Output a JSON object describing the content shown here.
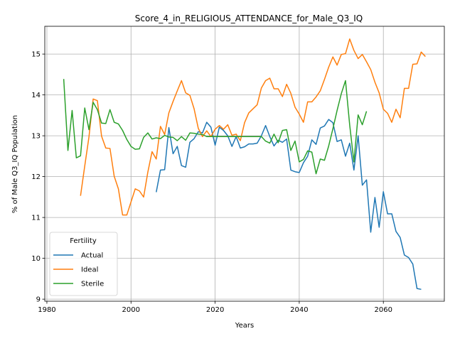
{
  "chart_data": {
    "type": "line",
    "title": "Score_4_in_RELIGIOUS_ATTENDANCE_for_Male_Q3_IQ",
    "xlabel": "Years",
    "ylabel": "% of Male Q3_IQ Population",
    "xlim": [
      1979.5,
      2074.5
    ],
    "ylim": [
      8.95,
      15.68
    ],
    "xticks": [
      1980,
      2000,
      2020,
      2040,
      2060
    ],
    "yticks": [
      9,
      10,
      11,
      12,
      13,
      14,
      15
    ],
    "grid": true,
    "legend": {
      "title": "Fertility",
      "position": "bottom-left"
    },
    "series": [
      {
        "name": "Actual",
        "color": "#1f77b4",
        "x": [
          2006,
          2007,
          2008,
          2009,
          2010,
          2011,
          2012,
          2013,
          2014,
          2015,
          2016,
          2017,
          2018,
          2019,
          2020,
          2021,
          2022,
          2023,
          2024,
          2025,
          2026,
          2027,
          2028,
          2029,
          2030,
          2031,
          2032,
          2033,
          2034,
          2035,
          2036,
          2037,
          2038,
          2039,
          2040,
          2041,
          2042,
          2043,
          2044,
          2045,
          2046,
          2047,
          2048,
          2049,
          2050,
          2051,
          2052,
          2053,
          2054,
          2055,
          2056,
          2057,
          2058,
          2059,
          2060,
          2061,
          2062,
          2063,
          2064,
          2065,
          2066,
          2067,
          2068,
          2069,
          2070
        ],
        "y": [
          11.62,
          12.16,
          12.17,
          13.2,
          12.56,
          12.74,
          12.27,
          12.23,
          12.84,
          12.93,
          13.1,
          13.07,
          13.33,
          13.21,
          12.77,
          13.21,
          13.13,
          13.0,
          12.74,
          12.98,
          12.7,
          12.73,
          12.8,
          12.8,
          12.82,
          13.0,
          13.25,
          12.98,
          12.75,
          12.89,
          12.84,
          12.92,
          12.16,
          12.12,
          12.1,
          12.34,
          12.5,
          12.9,
          12.79,
          13.19,
          13.24,
          13.4,
          13.32,
          12.86,
          12.9,
          12.5,
          12.82,
          12.16,
          13.0,
          11.79,
          11.92,
          10.64,
          11.49,
          10.76,
          11.63,
          11.09,
          11.09,
          10.66,
          10.51,
          10.08,
          10.02,
          9.86,
          9.26,
          9.24,
          null
        ]
      },
      {
        "name": "Ideal",
        "color": "#ff7f0e",
        "x": [
          1988,
          1989,
          1990,
          1991,
          1992,
          1993,
          1994,
          1995,
          1996,
          1997,
          1998,
          1999,
          2000,
          2001,
          2002,
          2003,
          2004,
          2005,
          2006,
          2007,
          2008,
          2009,
          2010,
          2011,
          2012,
          2013,
          2014,
          2015,
          2016,
          2017,
          2018,
          2019,
          2020,
          2021,
          2022,
          2023,
          2024,
          2025,
          2026,
          2027,
          2028,
          2029,
          2030,
          2031,
          2032,
          2033,
          2034,
          2035,
          2036,
          2037,
          2038,
          2039,
          2040,
          2041,
          2042,
          2043,
          2044,
          2045,
          2046,
          2047,
          2048,
          2049,
          2050,
          2051,
          2052,
          2053,
          2054,
          2055,
          2056,
          2057,
          2058,
          2059,
          2060,
          2061,
          2062,
          2063,
          2064,
          2065,
          2066,
          2067,
          2068,
          2069,
          2070
        ],
        "y": [
          11.53,
          12.26,
          12.97,
          13.9,
          13.86,
          12.99,
          12.7,
          12.69,
          12.01,
          11.7,
          11.06,
          11.06,
          11.38,
          11.7,
          11.65,
          11.5,
          12.11,
          12.61,
          12.43,
          13.23,
          13.03,
          13.56,
          13.84,
          14.1,
          14.35,
          14.05,
          13.99,
          13.66,
          13.18,
          12.98,
          13.12,
          12.98,
          13.16,
          13.25,
          13.16,
          13.27,
          13.01,
          13.04,
          12.88,
          13.32,
          13.56,
          13.66,
          13.76,
          14.17,
          14.35,
          14.41,
          14.15,
          14.15,
          13.96,
          14.26,
          14.04,
          13.7,
          13.53,
          13.33,
          13.83,
          13.83,
          13.95,
          14.1,
          14.38,
          14.68,
          14.93,
          14.73,
          14.99,
          15.01,
          15.37,
          15.09,
          14.89,
          14.99,
          14.81,
          14.62,
          14.31,
          14.05,
          13.65,
          13.55,
          13.33,
          13.65,
          13.44,
          14.16,
          14.16,
          14.75,
          14.76,
          15.05,
          14.94
        ]
      },
      {
        "name": "Sterile",
        "color": "#2ca02c",
        "x": [
          1984,
          1985,
          1986,
          1987,
          1988,
          1989,
          1990,
          1991,
          1992,
          1993,
          1994,
          1995,
          1996,
          1997,
          1998,
          1999,
          2000,
          2001,
          2002,
          2003,
          2004,
          2005,
          2006,
          2007,
          2008,
          2009,
          2010,
          2011,
          2012,
          2013,
          2014,
          2015,
          2016,
          2017,
          2018,
          2019,
          2020,
          2021,
          2022,
          2023,
          2024,
          2025,
          2026,
          2027,
          2028,
          2029,
          2030,
          2031,
          2032,
          2033,
          2034,
          2035,
          2036,
          2037,
          2038,
          2039,
          2040,
          2041,
          2042,
          2043,
          2044,
          2045,
          2046,
          2047,
          2048,
          2049,
          2050,
          2051,
          2052,
          2053,
          2054,
          2055,
          2056
        ],
        "y": [
          14.39,
          12.64,
          13.62,
          12.46,
          12.51,
          13.68,
          13.15,
          13.82,
          13.64,
          13.31,
          13.3,
          13.64,
          13.33,
          13.29,
          13.13,
          12.91,
          12.74,
          12.67,
          12.68,
          12.96,
          13.07,
          12.92,
          12.95,
          12.93,
          13.01,
          12.97,
          12.96,
          12.88,
          12.98,
          12.89,
          13.07,
          13.06,
          13.04,
          13.03,
          12.98,
          12.98,
          12.98,
          12.98,
          12.98,
          12.98,
          12.98,
          12.98,
          12.98,
          12.98,
          12.98,
          12.98,
          12.98,
          12.98,
          12.87,
          12.82,
          13.04,
          12.83,
          13.13,
          13.15,
          12.64,
          12.87,
          12.36,
          12.42,
          12.63,
          12.6,
          12.07,
          12.43,
          12.4,
          12.75,
          13.17,
          13.62,
          14.03,
          14.35,
          13.26,
          12.36,
          13.51,
          13.27,
          13.6
        ]
      }
    ]
  }
}
